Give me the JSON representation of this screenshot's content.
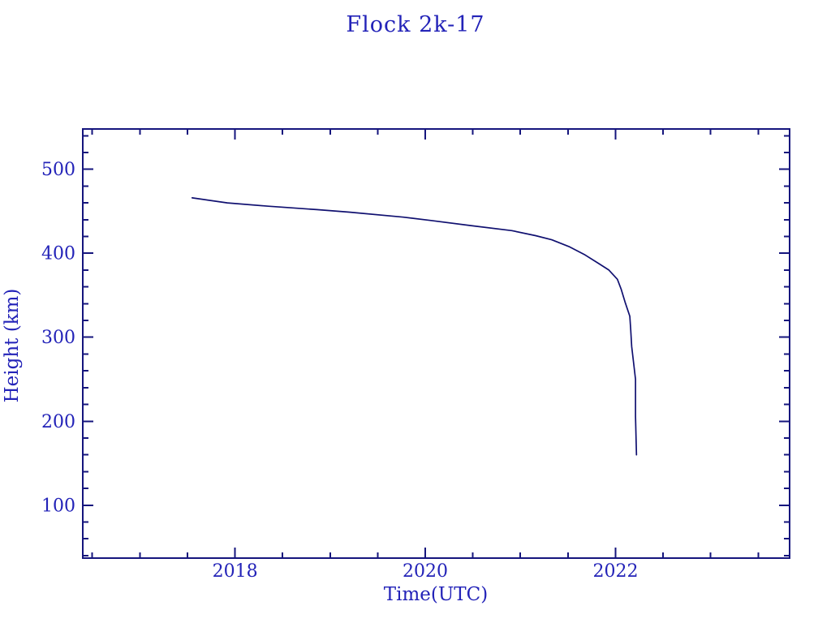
{
  "page": {
    "background": "#ffffff"
  },
  "chart_data": {
    "type": "line",
    "title": "Flock 2k-17",
    "xlabel": "Time(UTC)",
    "ylabel": "Height (km)",
    "xlim": [
      2016.4,
      2023.83
    ],
    "ylim": [
      37,
      548
    ],
    "x_major_ticks": [
      2018,
      2020,
      2022
    ],
    "x_major_tick_labels": [
      "2018",
      "2020",
      "2022"
    ],
    "x_minor_tick_interval": 0.5,
    "y_major_ticks": [
      100,
      200,
      300,
      400,
      500
    ],
    "y_major_tick_labels": [
      "100",
      "200",
      "300",
      "400",
      "500"
    ],
    "y_minor_tick_interval": 20,
    "grid": false,
    "legend": false,
    "ticks_on_all_sides": true,
    "colors": {
      "text": "#2323b8",
      "axis": "#15157d",
      "line": "#101070",
      "background": "#ffffff"
    },
    "series": [
      {
        "name": "Flock 2k-17",
        "points": [
          [
            2017.55,
            466
          ],
          [
            2017.92,
            460
          ],
          [
            2018.35,
            456
          ],
          [
            2018.86,
            452
          ],
          [
            2019.2,
            449
          ],
          [
            2019.77,
            443
          ],
          [
            2020.06,
            439
          ],
          [
            2020.48,
            433
          ],
          [
            2020.91,
            427
          ],
          [
            2021.16,
            421
          ],
          [
            2021.33,
            416
          ],
          [
            2021.51,
            408
          ],
          [
            2021.68,
            398
          ],
          [
            2021.82,
            388
          ],
          [
            2021.93,
            380
          ],
          [
            2022.02,
            369
          ],
          [
            2022.06,
            357
          ],
          [
            2022.1,
            342
          ],
          [
            2022.15,
            325
          ],
          [
            2022.16,
            309
          ],
          [
            2022.17,
            289
          ],
          [
            2022.19,
            270
          ],
          [
            2022.21,
            250
          ],
          [
            2022.21,
            235
          ],
          [
            2022.21,
            206
          ],
          [
            2022.22,
            160
          ]
        ]
      }
    ]
  }
}
